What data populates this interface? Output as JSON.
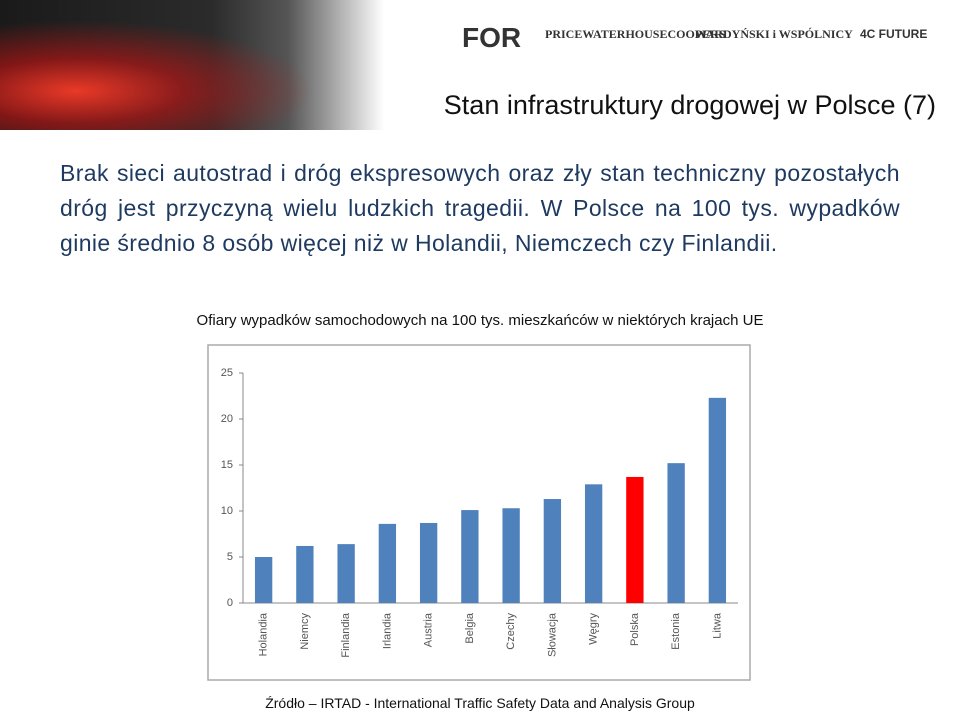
{
  "header": {
    "title": "Stan infrastruktury drogowej w Polsce (7)",
    "logos": [
      "FOR",
      "PRICEWATERHOUSECOOPERS",
      "WARDYŃSKI i WSPÓLNICY",
      "4C FUTURE"
    ]
  },
  "body": "Brak sieci autostrad i dróg ekspresowych oraz zły stan techniczny pozostałych dróg jest przyczyną wielu ludzkich tragedii. W Polsce na 100 tys. wypadków ginie średnio 8 osób więcej niż w Holandii, Niemczech czy Finlandii.",
  "chart_data": {
    "type": "bar",
    "title": "Ofiary wypadków samochodowych na 100 tys. mieszkańców w niektórych krajach UE",
    "categories": [
      "Holandia",
      "Niemcy",
      "Finlandia",
      "Irlandia",
      "Austria",
      "Belgia",
      "Czechy",
      "Słowacja",
      "Węgry",
      "Polska",
      "Estonia",
      "Litwa"
    ],
    "values": [
      5.0,
      6.2,
      6.4,
      8.6,
      8.7,
      10.1,
      10.3,
      11.3,
      12.9,
      13.7,
      15.2,
      22.3
    ],
    "colors": [
      "#4f81bd",
      "#4f81bd",
      "#4f81bd",
      "#4f81bd",
      "#4f81bd",
      "#4f81bd",
      "#4f81bd",
      "#4f81bd",
      "#4f81bd",
      "#ff0000",
      "#4f81bd",
      "#4f81bd"
    ],
    "ylim": [
      0,
      25
    ],
    "yticks": [
      0,
      5,
      10,
      15,
      20,
      25
    ],
    "grid": false
  },
  "source": "Źródło – IRTAD - International Traffic Safety Data and Analysis Group"
}
